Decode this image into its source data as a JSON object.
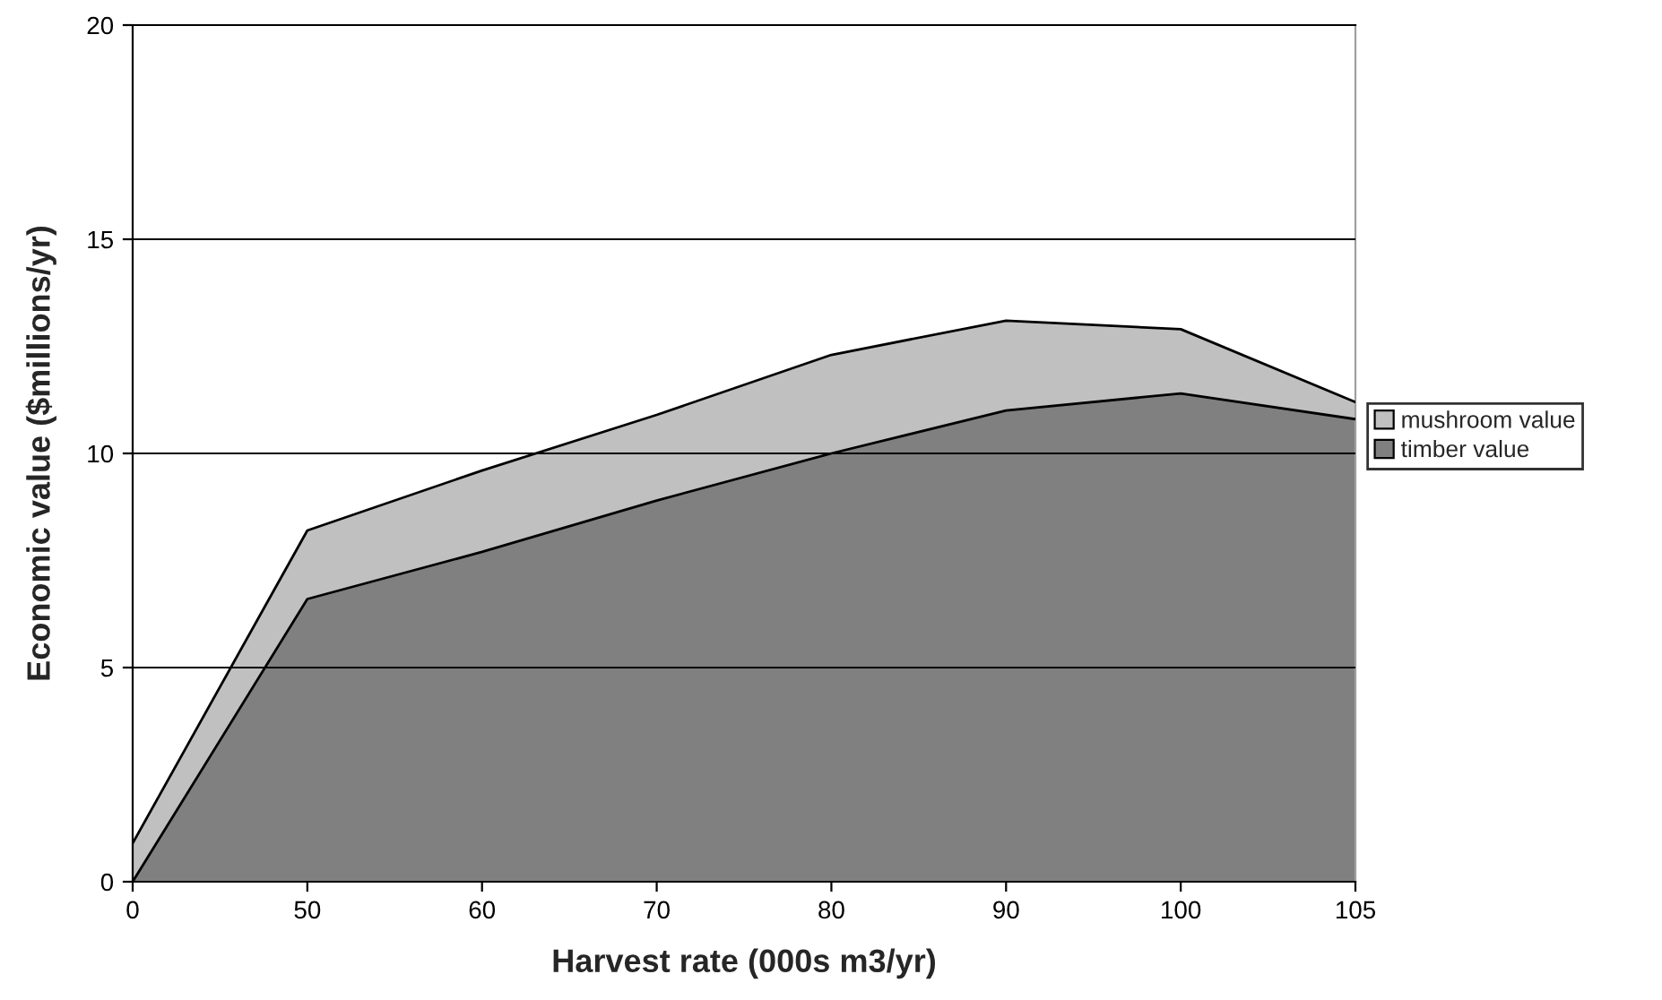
{
  "chart_data": {
    "type": "area",
    "stacked": true,
    "xlabel": "Harvest rate (000s m3/yr)",
    "ylabel": "Economic value ($millions/yr)",
    "categories": [
      "0",
      "50",
      "60",
      "70",
      "80",
      "90",
      "100",
      "105"
    ],
    "series": [
      {
        "name": "timber value",
        "color": "#808080",
        "values": [
          0,
          6.6,
          7.7,
          8.9,
          10.0,
          11.0,
          11.4,
          10.8
        ]
      },
      {
        "name": "mushroom value",
        "color": "#c0c0c0",
        "values": [
          0.9,
          1.6,
          1.9,
          2.0,
          2.3,
          2.1,
          1.5,
          0.4
        ]
      }
    ],
    "ylim": [
      0,
      20
    ],
    "yticks": [
      0,
      5,
      10,
      15,
      20
    ],
    "grid": "y",
    "legend": "right"
  }
}
